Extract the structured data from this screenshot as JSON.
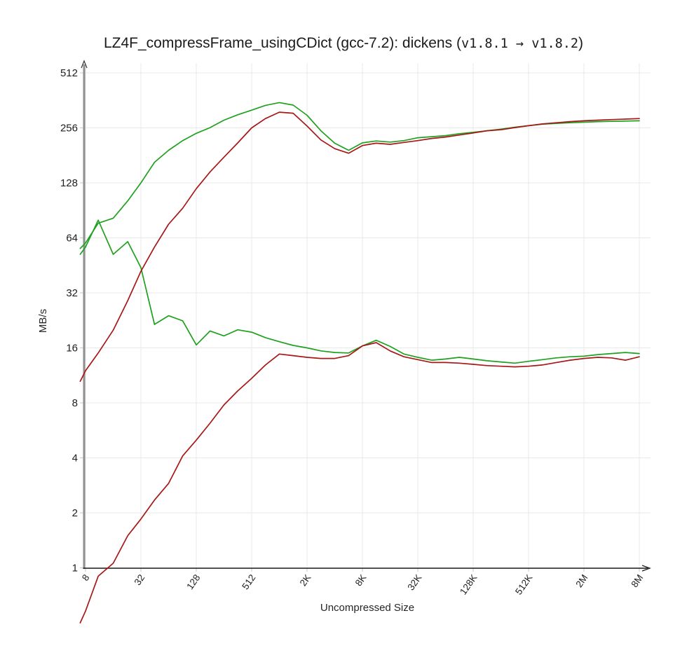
{
  "title": {
    "prefix": "LZ4F_compressFrame_usingCDict (gcc-7.2): dickens (",
    "v_old": "v1.8.1",
    "arrow": " → ",
    "v_new": "v1.8.2",
    "suffix": ")"
  },
  "chart_data": {
    "type": "line",
    "title": "LZ4F_compressFrame_usingCDict (gcc-7.2): dickens (v1.8.1 → v1.8.2)",
    "xlabel": "Uncompressed Size",
    "ylabel": "MB/s",
    "x_scale": "log",
    "y_scale": "log",
    "xlim": [
      8,
      8388608
    ],
    "ylim": [
      1,
      512
    ],
    "grid": true,
    "legend_position": "none",
    "style": {
      "grid_color": "#e8e8e8",
      "tick_color": "#c9c9c9",
      "y_axis_color": "#8f8f8f",
      "x_axis_color": "#1a1a1a",
      "green": "#1fa11f",
      "red": "#a81717"
    },
    "x_ticks": [
      {
        "value": 8,
        "label": "8"
      },
      {
        "value": 32,
        "label": "32"
      },
      {
        "value": 128,
        "label": "128"
      },
      {
        "value": 512,
        "label": "512"
      },
      {
        "value": 2048,
        "label": "2K"
      },
      {
        "value": 8192,
        "label": "8K"
      },
      {
        "value": 32768,
        "label": "32K"
      },
      {
        "value": 131072,
        "label": "128K"
      },
      {
        "value": 524288,
        "label": "512K"
      },
      {
        "value": 2097152,
        "label": "2M"
      },
      {
        "value": 8388608,
        "label": "8M"
      }
    ],
    "y_ticks": [
      {
        "value": 512,
        "label": "512"
      },
      {
        "value": 256,
        "label": "256"
      },
      {
        "value": 128,
        "label": "128"
      },
      {
        "value": 64,
        "label": "64"
      },
      {
        "value": 32,
        "label": "32"
      },
      {
        "value": 16,
        "label": "16"
      },
      {
        "value": 8,
        "label": "8"
      },
      {
        "value": 4,
        "label": "4"
      },
      {
        "value": 2,
        "label": "2"
      },
      {
        "value": 1,
        "label": "1"
      }
    ],
    "series": [
      {
        "name": "green-upper",
        "color": "#1fa11f",
        "points": [
          [
            7,
            56
          ],
          [
            8,
            60
          ],
          [
            11,
            77
          ],
          [
            16,
            82
          ],
          [
            23,
            102
          ],
          [
            32,
            128
          ],
          [
            45,
            166
          ],
          [
            64,
            193
          ],
          [
            91,
            218
          ],
          [
            128,
            239
          ],
          [
            181,
            257
          ],
          [
            256,
            282
          ],
          [
            362,
            302
          ],
          [
            512,
            320
          ],
          [
            724,
            340
          ],
          [
            1024,
            352
          ],
          [
            1448,
            341
          ],
          [
            2048,
            300
          ],
          [
            2896,
            247
          ],
          [
            4096,
            211
          ],
          [
            5793,
            193
          ],
          [
            8192,
            212
          ],
          [
            11585,
            217
          ],
          [
            16384,
            214
          ],
          [
            23170,
            218
          ],
          [
            32768,
            226
          ],
          [
            46341,
            229
          ],
          [
            65536,
            232
          ],
          [
            92682,
            238
          ],
          [
            131072,
            242
          ],
          [
            185364,
            247
          ],
          [
            262144,
            252
          ],
          [
            370728,
            258
          ],
          [
            524288,
            263
          ],
          [
            741455,
            268
          ],
          [
            1048576,
            271
          ],
          [
            1482910,
            273
          ],
          [
            2097152,
            275
          ],
          [
            2965821,
            277
          ],
          [
            4194304,
            278
          ],
          [
            5931642,
            279
          ],
          [
            8388608,
            280
          ]
        ]
      },
      {
        "name": "green-lower",
        "color": "#1fa11f",
        "points": [
          [
            7,
            52
          ],
          [
            8,
            57
          ],
          [
            11,
            80
          ],
          [
            16,
            52
          ],
          [
            23,
            61
          ],
          [
            32,
            44
          ],
          [
            45,
            21.5
          ],
          [
            64,
            24
          ],
          [
            91,
            22.5
          ],
          [
            128,
            16.6
          ],
          [
            181,
            19.8
          ],
          [
            256,
            18.6
          ],
          [
            362,
            20.1
          ],
          [
            512,
            19.5
          ],
          [
            724,
            18.2
          ],
          [
            1024,
            17.3
          ],
          [
            1448,
            16.5
          ],
          [
            2048,
            16.0
          ],
          [
            2896,
            15.4
          ],
          [
            4096,
            15.1
          ],
          [
            5793,
            15.0
          ],
          [
            8192,
            16.4
          ],
          [
            11585,
            17.6
          ],
          [
            16384,
            16.3
          ],
          [
            23170,
            14.8
          ],
          [
            32768,
            14.2
          ],
          [
            46341,
            13.7
          ],
          [
            65536,
            13.9
          ],
          [
            92682,
            14.2
          ],
          [
            131072,
            13.9
          ],
          [
            185364,
            13.6
          ],
          [
            262144,
            13.4
          ],
          [
            370728,
            13.2
          ],
          [
            524288,
            13.5
          ],
          [
            741455,
            13.8
          ],
          [
            1048576,
            14.1
          ],
          [
            1482910,
            14.3
          ],
          [
            2097152,
            14.4
          ],
          [
            2965821,
            14.7
          ],
          [
            4194304,
            14.9
          ],
          [
            5931642,
            15.1
          ],
          [
            8388608,
            14.9
          ]
        ]
      },
      {
        "name": "red-upper",
        "color": "#a81717",
        "points": [
          [
            7,
            10.5
          ],
          [
            8,
            12
          ],
          [
            11,
            15
          ],
          [
            16,
            20
          ],
          [
            23,
            29
          ],
          [
            32,
            42
          ],
          [
            45,
            57
          ],
          [
            64,
            76
          ],
          [
            91,
            93
          ],
          [
            128,
            119
          ],
          [
            181,
            147
          ],
          [
            256,
            177
          ],
          [
            362,
            212
          ],
          [
            512,
            256
          ],
          [
            724,
            288
          ],
          [
            1024,
            312
          ],
          [
            1448,
            308
          ],
          [
            2048,
            262
          ],
          [
            2896,
            220
          ],
          [
            4096,
            197
          ],
          [
            5793,
            186
          ],
          [
            8192,
            205
          ],
          [
            11585,
            211
          ],
          [
            16384,
            208
          ],
          [
            23170,
            213
          ],
          [
            32768,
            218
          ],
          [
            46341,
            224
          ],
          [
            65536,
            228
          ],
          [
            92682,
            234
          ],
          [
            131072,
            240
          ],
          [
            185364,
            247
          ],
          [
            262144,
            250
          ],
          [
            370728,
            257
          ],
          [
            524288,
            263
          ],
          [
            741455,
            269
          ],
          [
            1048576,
            273
          ],
          [
            1482910,
            277
          ],
          [
            2097152,
            280
          ],
          [
            2965821,
            282
          ],
          [
            4194304,
            284
          ],
          [
            5931642,
            286
          ],
          [
            8388608,
            288
          ]
        ]
      },
      {
        "name": "red-lower",
        "color": "#a81717",
        "points": [
          [
            7,
            0.5
          ],
          [
            8,
            0.58
          ],
          [
            11,
            0.9
          ],
          [
            16,
            1.06
          ],
          [
            23,
            1.5
          ],
          [
            32,
            1.85
          ],
          [
            45,
            2.35
          ],
          [
            64,
            2.9
          ],
          [
            91,
            4.1
          ],
          [
            128,
            5.0
          ],
          [
            181,
            6.2
          ],
          [
            256,
            7.8
          ],
          [
            362,
            9.3
          ],
          [
            512,
            10.9
          ],
          [
            724,
            12.9
          ],
          [
            1024,
            14.8
          ],
          [
            1448,
            14.5
          ],
          [
            2048,
            14.2
          ],
          [
            2896,
            14.0
          ],
          [
            4096,
            14.0
          ],
          [
            5793,
            14.5
          ],
          [
            8192,
            16.4
          ],
          [
            11585,
            17.1
          ],
          [
            16384,
            15.4
          ],
          [
            23170,
            14.3
          ],
          [
            32768,
            13.8
          ],
          [
            46341,
            13.3
          ],
          [
            65536,
            13.3
          ],
          [
            92682,
            13.2
          ],
          [
            131072,
            13.0
          ],
          [
            185364,
            12.8
          ],
          [
            262144,
            12.7
          ],
          [
            370728,
            12.6
          ],
          [
            524288,
            12.7
          ],
          [
            741455,
            12.9
          ],
          [
            1048576,
            13.3
          ],
          [
            1482910,
            13.7
          ],
          [
            2097152,
            14.0
          ],
          [
            2965821,
            14.2
          ],
          [
            4194304,
            14.1
          ],
          [
            5931642,
            13.7
          ],
          [
            8388608,
            14.3
          ]
        ]
      }
    ]
  }
}
